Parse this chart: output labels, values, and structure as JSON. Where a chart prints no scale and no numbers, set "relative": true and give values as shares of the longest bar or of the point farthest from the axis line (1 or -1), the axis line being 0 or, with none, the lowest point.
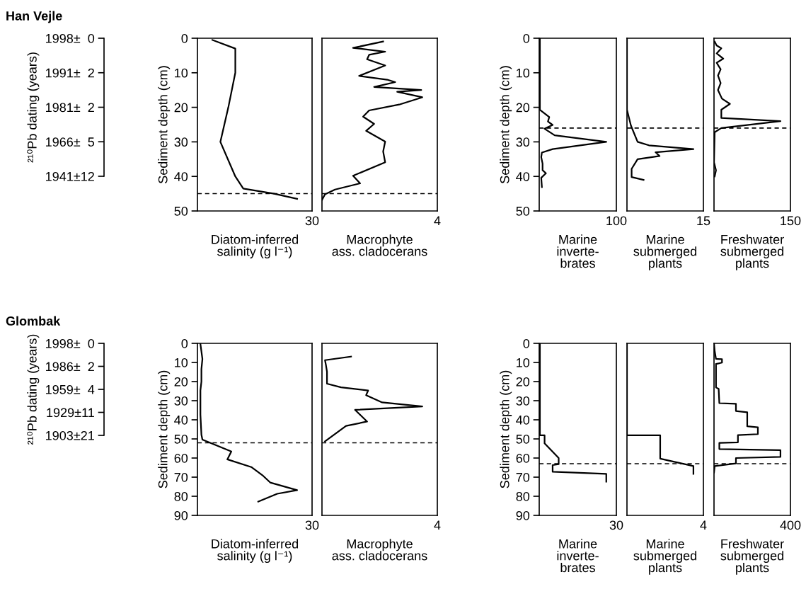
{
  "chart_data": [
    {
      "type": "other",
      "title": "Han Vejle",
      "ylabel": "²¹⁰Pb dating (years)",
      "categories": [
        "1998±  0",
        "1991±  2",
        "1981±  2",
        "1966±  5",
        "1941±12"
      ]
    },
    {
      "type": "line",
      "orientation": "horizontal",
      "relative": true,
      "xlabel": "Diatom-inferred\nsalinity (g l⁻¹)",
      "ylabel": "Sediment depth (cm)",
      "annotations": [
        "30"
      ],
      "series": [
        {
          "color": "#000000",
          "x": [
            0.5,
            3,
            10,
            20,
            30,
            40,
            43.5,
            45,
            46.5
          ],
          "values": [
            0.15,
            0.38,
            0.38,
            0.31,
            0.23,
            0.38,
            0.46,
            0.77,
            1
          ]
        }
      ],
      "ylim": [
        50,
        0
      ],
      "yticks": [
        0,
        10,
        20,
        30,
        40,
        50
      ],
      "ref_lines": [
        {
          "axis": "y",
          "value": 45,
          "color": "#000000",
          "line_style": "dashed"
        }
      ],
      "marker": "none",
      "line_style": "solid"
    },
    {
      "type": "line",
      "orientation": "horizontal",
      "relative": true,
      "xlabel": "Macrophyte\nass. cladocerans",
      "annotations": [
        "4"
      ],
      "series": [
        {
          "color": "#000000",
          "x": [
            0.95,
            2.8,
            3.9,
            4.8,
            6.1,
            7.9,
            10.9,
            12,
            12.7,
            14.1,
            15.0,
            15.5,
            17.1,
            19.2,
            20.9,
            22.7,
            24.8,
            26.8,
            29.9,
            32.8,
            35.9,
            39.8,
            42,
            43.8,
            45.2,
            46.8
          ],
          "values": [
            0.61,
            0.31,
            0.63,
            0.47,
            0.45,
            0.63,
            0.37,
            0.65,
            0.73,
            0.52,
            0.99,
            0.75,
            1,
            0.77,
            0.47,
            0.41,
            0.52,
            0.44,
            0.63,
            0.61,
            0.63,
            0.31,
            0.38,
            0.13,
            0.03,
            0
          ]
        }
      ],
      "ylim": [
        50,
        0
      ],
      "ref_lines": [
        {
          "axis": "y",
          "value": 45,
          "color": "#000000",
          "line_style": "dashed"
        }
      ],
      "marker": "none",
      "line_style": "solid"
    },
    {
      "type": "line",
      "orientation": "horizontal",
      "relative": true,
      "xlabel": "Marine\ninverte-\nbrates",
      "ylabel": "Sediment depth (cm)",
      "annotations": [
        "100"
      ],
      "series": [
        {
          "color": "#000000",
          "x": [
            0,
            20.7,
            22.8,
            24.1,
            25.1,
            26.2,
            28.1,
            30.0,
            32.1,
            33.1,
            34.4,
            36.3,
            38.2,
            39.1,
            40.4,
            43.1
          ],
          "values": [
            0.01,
            0.01,
            0.15,
            0.13,
            0.2,
            0.08,
            0.23,
            1,
            0.2,
            0.04,
            0.03,
            0.05,
            0.05,
            0.1,
            0.03,
            0.04
          ]
        }
      ],
      "ylim": [
        50,
        0
      ],
      "yticks": [
        0,
        10,
        20,
        30,
        40,
        50
      ],
      "ref_lines": [
        {
          "axis": "y",
          "value": 26,
          "color": "#000000",
          "line_style": "dashed"
        }
      ],
      "marker": "none",
      "line_style": "solid"
    },
    {
      "type": "line",
      "orientation": "horizontal",
      "relative": true,
      "xlabel": "Marine\nsubmerged\nplants",
      "annotations": [
        "15"
      ],
      "series": [
        {
          "color": "#000000",
          "x": [
            0,
            20.7,
            25.3,
            30,
            31,
            32.1,
            33,
            34.1,
            35,
            37.8,
            40.2,
            41
          ],
          "values": [
            0,
            0,
            0.06,
            0.16,
            0.33,
            1,
            0.43,
            0.49,
            0.16,
            0.07,
            0.07,
            0.25
          ]
        }
      ],
      "ylim": [
        50,
        0
      ],
      "ref_lines": [
        {
          "axis": "y",
          "value": 26,
          "color": "#000000",
          "line_style": "dashed"
        }
      ],
      "marker": "none",
      "line_style": "solid"
    },
    {
      "type": "line",
      "orientation": "horizontal",
      "relative": true,
      "xlabel": "Freshwater\nsubmerged\nplants",
      "annotations": [
        "150"
      ],
      "series": [
        {
          "color": "#000000",
          "x": [
            1,
            2.1,
            2.9,
            4.4,
            5.9,
            7.1,
            9,
            10.8,
            13,
            15,
            17.5,
            19,
            20.7,
            23.1,
            24,
            26,
            27.2,
            35.9,
            38.2,
            40
          ],
          "values": [
            0.01,
            0.04,
            0.11,
            0.04,
            0.14,
            0.04,
            0.1,
            0.06,
            0.1,
            0.06,
            0.12,
            0.24,
            0.11,
            0.11,
            1,
            0.11,
            0.01,
            0,
            0.03,
            0.01
          ]
        }
      ],
      "ylim": [
        50,
        0
      ],
      "ref_lines": [
        {
          "axis": "y",
          "value": 26,
          "color": "#000000",
          "line_style": "dashed"
        }
      ],
      "marker": "none",
      "line_style": "solid"
    },
    {
      "type": "other",
      "title": "Glombak",
      "ylabel": "²¹⁰Pb dating (years)",
      "categories": [
        "1998±  0",
        "1986±  2",
        "1959±  4",
        "1929±11",
        "1903±21"
      ]
    },
    {
      "type": "line",
      "orientation": "horizontal",
      "relative": true,
      "xlabel": "Diatom-inferred\nsalinity (g l⁻¹)",
      "ylabel": "Sediment depth (cm)",
      "annotations": [
        "30"
      ],
      "series": [
        {
          "color": "#000000",
          "x": [
            0.3,
            4.2,
            8.2,
            13.5,
            20,
            24.7,
            37.2,
            47.8,
            50.4,
            56.6,
            60.7,
            64.7,
            68.9,
            72.8,
            76.8,
            78.7,
            82.8
          ],
          "values": [
            0.03,
            0.04,
            0.05,
            0.04,
            0.04,
            0.03,
            0.03,
            0.04,
            0.05,
            0.34,
            0.3,
            0.54,
            0.65,
            0.73,
            1,
            0.8,
            0.61
          ]
        }
      ],
      "ylim": [
        90,
        0
      ],
      "yticks": [
        0,
        10,
        20,
        30,
        40,
        50,
        60,
        70,
        80,
        90
      ],
      "ref_lines": [
        {
          "axis": "y",
          "value": 52,
          "color": "#000000",
          "line_style": "dashed"
        }
      ],
      "marker": "none",
      "line_style": "solid"
    },
    {
      "type": "line",
      "orientation": "horizontal",
      "relative": true,
      "xlabel": "Macrophyte\nass. cladocerans",
      "annotations": [
        "4"
      ],
      "series": [
        {
          "color": "#000000",
          "x": [
            6.9,
            8.8,
            11.5,
            14.8,
            21.1,
            23,
            24.7,
            27.1,
            30.9,
            33,
            34.8,
            40.9,
            43.2,
            51.3
          ],
          "values": [
            0.29,
            0.03,
            0.04,
            0.05,
            0.05,
            0.19,
            0.46,
            0.44,
            0.6,
            1,
            0.33,
            0.45,
            0.24,
            0.03
          ]
        }
      ],
      "ylim": [
        90,
        0
      ],
      "ref_lines": [
        {
          "axis": "y",
          "value": 52,
          "color": "#000000",
          "line_style": "dashed"
        }
      ],
      "marker": "none",
      "line_style": "solid"
    },
    {
      "type": "line",
      "orientation": "horizontal",
      "relative": true,
      "xlabel": "Marine\ninverte-\nbrates",
      "ylabel": "Sediment depth (cm)",
      "annotations": [
        "30"
      ],
      "series": [
        {
          "color": "#000000",
          "x": [
            0,
            48.1,
            48.1,
            52.3,
            60,
            63.2,
            63.7,
            67.2,
            68.3,
            72.4
          ],
          "values": [
            0.01,
            0.01,
            0.08,
            0.08,
            0.29,
            0.29,
            0.2,
            0.2,
            1,
            1
          ]
        }
      ],
      "ylim": [
        90,
        0
      ],
      "yticks": [
        0,
        10,
        20,
        30,
        40,
        50,
        60,
        70,
        80,
        90
      ],
      "ref_lines": [
        {
          "axis": "y",
          "value": 63,
          "color": "#000000",
          "line_style": "dashed"
        }
      ],
      "marker": "none",
      "line_style": "solid"
    },
    {
      "type": "line",
      "orientation": "horizontal",
      "relative": true,
      "xlabel": "Marine\nsubmerged\nplants",
      "annotations": [
        "4"
      ],
      "series": [
        {
          "color": "#000000",
          "x": [
            0,
            48.1,
            48.1,
            60.3,
            64.2,
            68.3
          ],
          "values": [
            0,
            0,
            0.5,
            0.5,
            1,
            1
          ]
        }
      ],
      "ylim": [
        90,
        0
      ],
      "ref_lines": [
        {
          "axis": "y",
          "value": 63,
          "color": "#000000",
          "line_style": "dashed"
        }
      ],
      "marker": "none",
      "line_style": "solid"
    },
    {
      "type": "line",
      "orientation": "horizontal",
      "relative": true,
      "xlabel": "Freshwater\nsubmerged\nplants",
      "annotations": [
        "400"
      ],
      "series": [
        {
          "color": "#000000",
          "x": [
            0,
            4,
            8.1,
            8.3,
            10.1,
            10.8,
            23.1,
            23.8,
            31.3,
            31.6,
            35.4,
            36.1,
            43.4,
            43.9,
            47.5,
            48,
            51.8,
            52.1,
            55.3,
            55.9,
            59.4,
            60,
            62.8,
            64.2,
            67.6
          ],
          "values": [
            0,
            0.01,
            0.03,
            0.12,
            0.12,
            0.03,
            0.03,
            0.07,
            0.08,
            0.33,
            0.33,
            0.5,
            0.5,
            0.66,
            0.66,
            0.36,
            0.36,
            0.08,
            0.08,
            1,
            1,
            0.33,
            0.33,
            0.01,
            0
          ]
        }
      ],
      "ylim": [
        90,
        0
      ],
      "ref_lines": [
        {
          "axis": "y",
          "value": 63,
          "color": "#000000",
          "line_style": "dashed"
        }
      ],
      "marker": "none",
      "line_style": "solid"
    }
  ]
}
